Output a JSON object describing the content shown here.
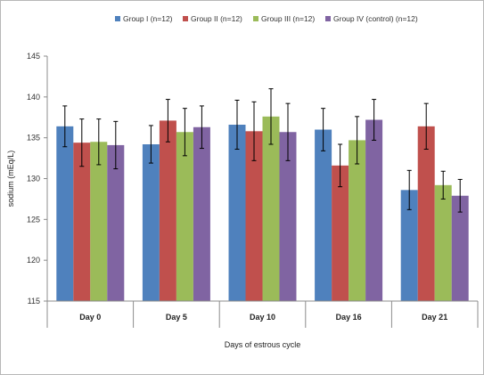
{
  "chart_data": {
    "type": "bar",
    "title": "",
    "xlabel": "Days of estrous cycle",
    "ylabel": "sodium (mEq/L)",
    "ylim": [
      115,
      145
    ],
    "yticks": [
      115,
      120,
      125,
      130,
      135,
      140,
      145
    ],
    "grid": false,
    "legend": "top",
    "error_bars": true,
    "categories": [
      "Day 0",
      "Day 5",
      "Day 10",
      "Day 16",
      "Day 21"
    ],
    "series": [
      {
        "name": "Group I (n=12)",
        "color": "#4f81bd",
        "values": [
          136.4,
          134.2,
          136.6,
          136.0,
          128.6
        ],
        "errors": [
          2.5,
          2.3,
          3.0,
          2.6,
          2.4
        ]
      },
      {
        "name": "Group II (n=12)",
        "color": "#c0504d",
        "values": [
          134.4,
          137.1,
          135.8,
          131.6,
          136.4
        ],
        "errors": [
          2.9,
          2.6,
          3.6,
          2.6,
          2.8
        ]
      },
      {
        "name": "Group III (n=12)",
        "color": "#9bbb59",
        "values": [
          134.5,
          135.7,
          137.6,
          134.7,
          129.2
        ],
        "errors": [
          2.8,
          2.9,
          3.4,
          2.9,
          1.7
        ]
      },
      {
        "name": "Group IV (control) (n=12)",
        "color": "#8064a2",
        "values": [
          134.1,
          136.3,
          135.7,
          137.2,
          127.9
        ],
        "errors": [
          2.9,
          2.6,
          3.5,
          2.5,
          2.0
        ]
      }
    ]
  }
}
